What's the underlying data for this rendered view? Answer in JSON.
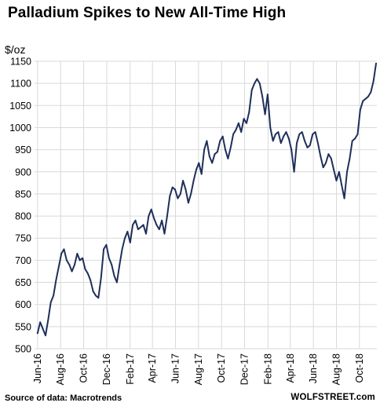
{
  "title": "Palladium Spikes to New All-Time High",
  "source_note": "Source of data: Macrotrends",
  "watermark": "WOLFSTREET.com",
  "chart_data": {
    "type": "line",
    "title": "Palladium Spikes to New All-Time High",
    "ylabel": "$/oz",
    "xlabel": "",
    "ylim": [
      500,
      1150
    ],
    "yticks": [
      500,
      550,
      600,
      650,
      700,
      750,
      800,
      850,
      900,
      950,
      1000,
      1050,
      1100,
      1150
    ],
    "xticks": [
      "2016-06-01",
      "2016-08-01",
      "2016-10-01",
      "2016-12-01",
      "2017-02-01",
      "2017-04-01",
      "2017-06-01",
      "2017-08-01",
      "2017-10-01",
      "2017-12-01",
      "2018-02-01",
      "2018-04-01",
      "2018-06-01",
      "2018-08-01",
      "2018-10-01"
    ],
    "xtick_labels": [
      "Jun-16",
      "Aug-16",
      "Oct-16",
      "Dec-16",
      "Feb-17",
      "Apr-17",
      "Jun-17",
      "Aug-17",
      "Oct-17",
      "Dec-17",
      "Feb-18",
      "Apr-18",
      "Jun-18",
      "Aug-18",
      "Oct-18"
    ],
    "grid": true,
    "legend": "none",
    "line_color": "#1f2f5a",
    "series": [
      {
        "x": [
          "2016-06-01",
          "2016-06-08",
          "2016-06-15",
          "2016-06-22",
          "2016-06-29",
          "2016-07-06",
          "2016-07-13",
          "2016-07-20",
          "2016-07-27",
          "2016-08-03",
          "2016-08-10",
          "2016-08-17",
          "2016-08-24",
          "2016-08-31",
          "2016-09-07",
          "2016-09-14",
          "2016-09-21",
          "2016-09-28",
          "2016-10-05",
          "2016-10-12",
          "2016-10-19",
          "2016-10-26",
          "2016-11-02",
          "2016-11-09",
          "2016-11-16",
          "2016-11-23",
          "2016-11-30",
          "2016-12-07",
          "2016-12-14",
          "2016-12-21",
          "2016-12-28",
          "2017-01-04",
          "2017-01-11",
          "2017-01-18",
          "2017-01-25",
          "2017-02-01",
          "2017-02-08",
          "2017-02-15",
          "2017-02-22",
          "2017-03-01",
          "2017-03-08",
          "2017-03-15",
          "2017-03-22",
          "2017-03-29",
          "2017-04-05",
          "2017-04-12",
          "2017-04-19",
          "2017-04-26",
          "2017-05-03",
          "2017-05-10",
          "2017-05-17",
          "2017-05-24",
          "2017-05-31",
          "2017-06-07",
          "2017-06-14",
          "2017-06-21",
          "2017-06-28",
          "2017-07-05",
          "2017-07-12",
          "2017-07-19",
          "2017-07-26",
          "2017-08-02",
          "2017-08-09",
          "2017-08-16",
          "2017-08-23",
          "2017-08-30",
          "2017-09-06",
          "2017-09-13",
          "2017-09-20",
          "2017-09-27",
          "2017-10-04",
          "2017-10-11",
          "2017-10-18",
          "2017-10-25",
          "2017-11-01",
          "2017-11-08",
          "2017-11-15",
          "2017-11-22",
          "2017-11-29",
          "2017-12-06",
          "2017-12-13",
          "2017-12-20",
          "2017-12-27",
          "2018-01-03",
          "2018-01-10",
          "2018-01-17",
          "2018-01-24",
          "2018-01-31",
          "2018-02-07",
          "2018-02-14",
          "2018-02-21",
          "2018-02-28",
          "2018-03-07",
          "2018-03-14",
          "2018-03-21",
          "2018-03-28",
          "2018-04-04",
          "2018-04-11",
          "2018-04-18",
          "2018-04-25",
          "2018-05-02",
          "2018-05-09",
          "2018-05-16",
          "2018-05-23",
          "2018-05-30",
          "2018-06-06",
          "2018-06-13",
          "2018-06-20",
          "2018-06-27",
          "2018-07-04",
          "2018-07-11",
          "2018-07-18",
          "2018-07-25",
          "2018-08-01",
          "2018-08-08",
          "2018-08-15",
          "2018-08-22",
          "2018-08-29",
          "2018-09-05",
          "2018-09-12",
          "2018-09-19",
          "2018-09-26",
          "2018-10-03",
          "2018-10-10",
          "2018-10-17",
          "2018-10-24",
          "2018-10-31",
          "2018-11-07",
          "2018-11-14"
        ],
        "y": [
          535,
          560,
          545,
          530,
          565,
          605,
          620,
          655,
          685,
          715,
          725,
          700,
          690,
          675,
          690,
          715,
          700,
          705,
          680,
          670,
          655,
          630,
          620,
          615,
          660,
          725,
          735,
          705,
          690,
          665,
          650,
          690,
          725,
          750,
          765,
          740,
          780,
          790,
          770,
          775,
          780,
          760,
          800,
          815,
          795,
          780,
          770,
          790,
          760,
          800,
          845,
          865,
          860,
          840,
          850,
          880,
          860,
          830,
          850,
          880,
          905,
          920,
          895,
          950,
          970,
          935,
          920,
          940,
          945,
          970,
          980,
          950,
          930,
          955,
          985,
          995,
          1010,
          990,
          1020,
          1010,
          1035,
          1085,
          1100,
          1110,
          1100,
          1070,
          1030,
          1075,
          1000,
          970,
          985,
          990,
          965,
          980,
          990,
          975,
          950,
          900,
          965,
          985,
          990,
          970,
          955,
          960,
          985,
          990,
          965,
          935,
          910,
          920,
          940,
          930,
          905,
          880,
          900,
          870,
          840,
          900,
          930,
          970,
          975,
          985,
          1040,
          1060,
          1065,
          1070,
          1080,
          1105,
          1145
        ]
      }
    ]
  }
}
